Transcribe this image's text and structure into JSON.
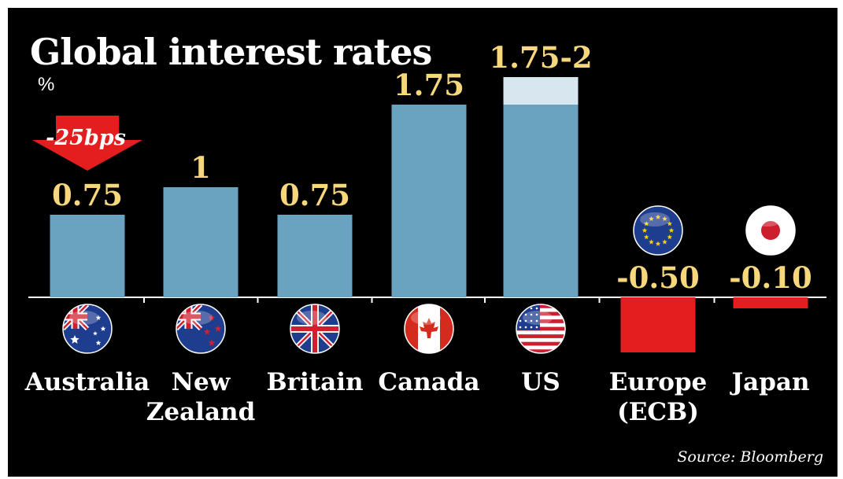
{
  "title": "Global interest rates",
  "unit": "%",
  "source": "Source: Bloomberg",
  "colors": {
    "background": "#000000",
    "positive_bar": "#6aa3bf",
    "range_band": "#d7e6ef",
    "negative_bar": "#e41e1e",
    "value_label": "#f6d77c",
    "annotation": "#e41e1e"
  },
  "chart_data": {
    "type": "bar",
    "title": "Global interest rates",
    "ylabel": "%",
    "xlabel": "",
    "categories": [
      "Australia",
      "New Zealand",
      "Britain",
      "Canada",
      "US",
      "Europe (ECB)",
      "Japan"
    ],
    "category_label_lines": [
      [
        "Australia"
      ],
      [
        "New",
        "Zealand"
      ],
      [
        "Britain"
      ],
      [
        "Canada"
      ],
      [
        "US"
      ],
      [
        "Europe",
        "(ECB)"
      ],
      [
        "Japan"
      ]
    ],
    "values": [
      0.75,
      1,
      0.75,
      1.75,
      2,
      -0.5,
      -0.1
    ],
    "range_low": [
      null,
      null,
      null,
      null,
      1.75,
      null,
      null
    ],
    "value_labels": [
      "0.75",
      "1",
      "0.75",
      "1.75",
      "1.75-2",
      "-0.50",
      "-0.10"
    ],
    "flag_icons": [
      "australia-flag-icon",
      "new-zealand-flag-icon",
      "britain-flag-icon",
      "canada-flag-icon",
      "us-flag-icon",
      "eu-flag-icon",
      "japan-flag-icon"
    ],
    "ylim": [
      -0.7,
      2.2
    ],
    "grid": false,
    "annotations": [
      {
        "category": "Australia",
        "text": "-25bps",
        "shape": "down-arrow"
      }
    ]
  }
}
